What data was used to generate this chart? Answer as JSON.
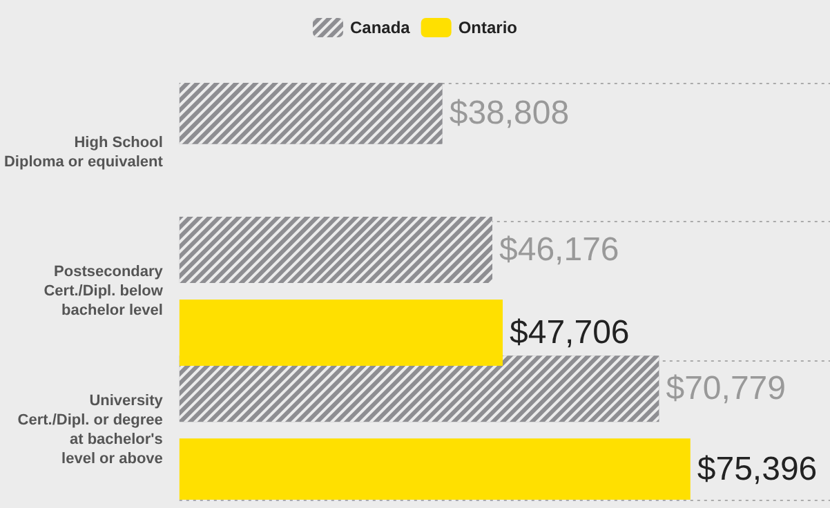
{
  "chart_data": {
    "type": "bar",
    "orientation": "horizontal",
    "categories": [
      "High School\nDiploma or equivalent",
      "Postsecondary\nCert./Dipl. below\nbachelor level",
      "University\nCert./Dipl. or degree\nat bachelor's\nlevel or above"
    ],
    "series": [
      {
        "name": "Canada",
        "color": "#8e8e92",
        "values": [
          38808,
          46176,
          70779
        ],
        "value_labels": [
          "$38,808",
          "$46,176",
          "$70,779"
        ]
      },
      {
        "name": "Ontario",
        "color": "#ffe000",
        "values": [
          null,
          47706,
          75396
        ],
        "value_labels": [
          null,
          "$47,706",
          "$75,396"
        ]
      }
    ],
    "xlim": [
      0,
      96000
    ],
    "tick_labels": "y",
    "grid": "y",
    "legend": "top"
  }
}
